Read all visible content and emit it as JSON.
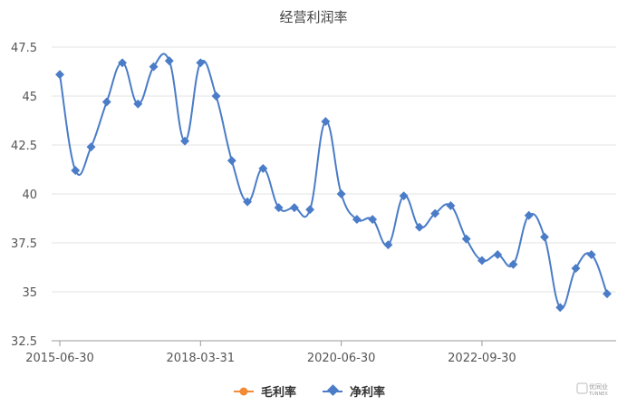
{
  "chart_data": {
    "type": "line",
    "title": "经营利润率",
    "xlabel": "",
    "ylabel": "",
    "ylim": [
      32.5,
      47.5
    ],
    "yticks": [
      "32.5",
      "35",
      "37.5",
      "40",
      "42.5",
      "45",
      "47.5"
    ],
    "x_tick_labels": [
      "2015-06-30",
      "2018-03-31",
      "2020-06-30",
      "2022-09-30"
    ],
    "grid": true,
    "legend_position": "bottom-center",
    "series": [
      {
        "name": "毛利率",
        "color": "#f28b38",
        "values": []
      },
      {
        "name": "净利率",
        "color": "#4a7cc7",
        "values": [
          46.1,
          41.2,
          42.4,
          44.7,
          46.7,
          44.6,
          46.5,
          46.8,
          42.7,
          46.7,
          45.0,
          41.7,
          39.6,
          41.3,
          39.3,
          39.3,
          39.2,
          43.7,
          40.0,
          38.7,
          38.7,
          37.4,
          39.9,
          38.3,
          39.0,
          39.4,
          37.7,
          36.6,
          36.9,
          36.4,
          38.9,
          37.8,
          34.2,
          36.2,
          36.9,
          34.9
        ]
      }
    ]
  },
  "watermark": {
    "line1": "优同业",
    "line2": "TUNNEX"
  }
}
